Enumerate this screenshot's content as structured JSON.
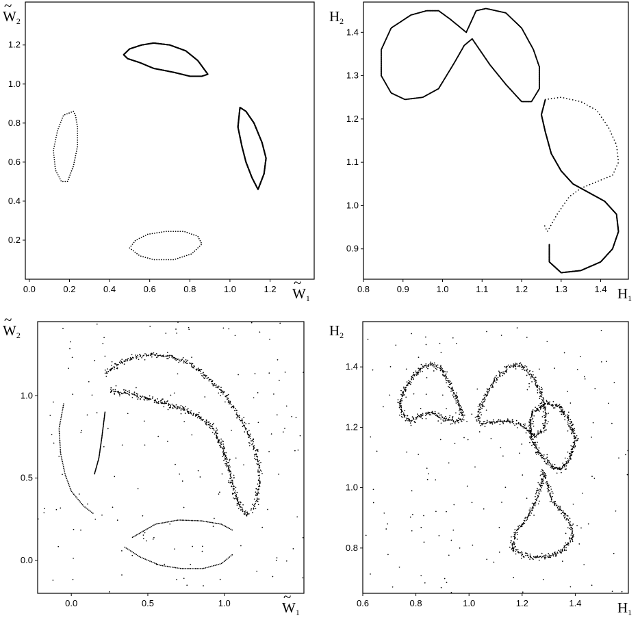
{
  "chart_data": [
    {
      "type": "scatter",
      "panel": "top-left",
      "xlabel": "W",
      "xlabel_sub": "1",
      "ylabel": "W",
      "ylabel_sub": "2",
      "label_accent": "~",
      "xlim": [
        -0.02,
        1.42
      ],
      "ylim": [
        0.0,
        1.42
      ],
      "xticks": [
        "0.0",
        "0.2",
        "0.4",
        "0.6",
        "0.8",
        "1.0",
        "1.2"
      ],
      "xtick_values": [
        0.0,
        0.2,
        0.4,
        0.6,
        0.8,
        1.0,
        1.2
      ],
      "yticks": [
        "0.2",
        "0.4",
        "0.6",
        "0.8",
        "1.0",
        "1.2"
      ],
      "ytick_values": [
        0.2,
        0.4,
        0.6,
        0.8,
        1.0,
        1.2
      ],
      "grid": false,
      "series": [
        {
          "values": [
            [
              0.47,
              1.15
            ],
            [
              0.5,
              1.18
            ],
            [
              0.56,
              1.2
            ],
            [
              0.62,
              1.21
            ],
            [
              0.7,
              1.2
            ],
            [
              0.78,
              1.17
            ],
            [
              0.84,
              1.12
            ],
            [
              0.89,
              1.05
            ],
            [
              0.86,
              1.04
            ],
            [
              0.8,
              1.04
            ],
            [
              0.72,
              1.06
            ],
            [
              0.62,
              1.08
            ],
            [
              0.55,
              1.11
            ],
            [
              0.49,
              1.13
            ],
            [
              0.47,
              1.15
            ]
          ],
          "style": "dense"
        },
        {
          "values": [
            [
              1.05,
              0.88
            ],
            [
              1.08,
              0.86
            ],
            [
              1.12,
              0.8
            ],
            [
              1.16,
              0.7
            ],
            [
              1.18,
              0.62
            ],
            [
              1.17,
              0.54
            ],
            [
              1.14,
              0.46
            ],
            [
              1.11,
              0.52
            ],
            [
              1.08,
              0.6
            ],
            [
              1.06,
              0.68
            ],
            [
              1.04,
              0.78
            ],
            [
              1.05,
              0.88
            ]
          ],
          "style": "dense"
        },
        {
          "values": [
            [
              0.22,
              0.86
            ],
            [
              0.17,
              0.84
            ],
            [
              0.14,
              0.76
            ],
            [
              0.12,
              0.66
            ],
            [
              0.13,
              0.56
            ],
            [
              0.16,
              0.5
            ],
            [
              0.19,
              0.5
            ],
            [
              0.22,
              0.58
            ],
            [
              0.24,
              0.68
            ],
            [
              0.24,
              0.78
            ],
            [
              0.23,
              0.84
            ],
            [
              0.22,
              0.86
            ]
          ],
          "style": "sparse"
        },
        {
          "values": [
            [
              0.59,
              0.23
            ],
            [
              0.68,
              0.245
            ],
            [
              0.77,
              0.245
            ],
            [
              0.84,
              0.22
            ],
            [
              0.86,
              0.18
            ],
            [
              0.81,
              0.13
            ],
            [
              0.72,
              0.1
            ],
            [
              0.62,
              0.1
            ],
            [
              0.55,
              0.12
            ],
            [
              0.5,
              0.16
            ],
            [
              0.53,
              0.2
            ],
            [
              0.59,
              0.23
            ]
          ],
          "style": "sparse"
        }
      ]
    },
    {
      "type": "scatter",
      "panel": "top-right",
      "xlabel": "H",
      "xlabel_sub": "1",
      "ylabel": "H",
      "ylabel_sub": "2",
      "xlim": [
        0.8,
        1.47
      ],
      "ylim": [
        0.83,
        1.47
      ],
      "xticks": [
        "0.8",
        "0.9",
        "1.0",
        "1.1",
        "1.2",
        "1.3",
        "1.4"
      ],
      "xtick_values": [
        0.8,
        0.9,
        1.0,
        1.1,
        1.2,
        1.3,
        1.4
      ],
      "yticks": [
        "0.9",
        "1.0",
        "1.1",
        "1.2",
        "1.3",
        "1.4"
      ],
      "ytick_values": [
        0.9,
        1.0,
        1.1,
        1.2,
        1.3,
        1.4
      ],
      "grid": false,
      "series": [
        {
          "values": [
            [
              1.06,
              1.4
            ],
            [
              1.02,
              1.43
            ],
            [
              0.99,
              1.45
            ],
            [
              0.96,
              1.45
            ],
            [
              0.92,
              1.44
            ],
            [
              0.87,
              1.41
            ],
            [
              0.845,
              1.36
            ],
            [
              0.845,
              1.3
            ],
            [
              0.87,
              1.26
            ],
            [
              0.905,
              1.245
            ],
            [
              0.95,
              1.25
            ],
            [
              0.99,
              1.27
            ],
            [
              1.03,
              1.33
            ],
            [
              1.055,
              1.37
            ],
            [
              1.075,
              1.385
            ],
            [
              1.12,
              1.325
            ],
            [
              1.16,
              1.28
            ],
            [
              1.2,
              1.24
            ],
            [
              1.225,
              1.24
            ],
            [
              1.245,
              1.27
            ],
            [
              1.245,
              1.32
            ],
            [
              1.23,
              1.36
            ],
            [
              1.2,
              1.41
            ],
            [
              1.16,
              1.445
            ],
            [
              1.11,
              1.455
            ],
            [
              1.085,
              1.45
            ],
            [
              1.07,
              1.42
            ],
            [
              1.06,
              1.4
            ]
          ],
          "style": "dense"
        },
        {
          "values": [
            [
              1.26,
              1.245
            ],
            [
              1.3,
              1.25
            ],
            [
              1.35,
              1.24
            ],
            [
              1.39,
              1.22
            ],
            [
              1.42,
              1.18
            ],
            [
              1.44,
              1.14
            ],
            [
              1.445,
              1.1
            ],
            [
              1.43,
              1.07
            ],
            [
              1.39,
              1.055
            ],
            [
              1.35,
              1.04
            ],
            [
              1.32,
              1.02
            ],
            [
              1.29,
              0.98
            ],
            [
              1.265,
              0.94
            ],
            [
              1.255,
              0.96
            ]
          ],
          "style": "sparse"
        },
        {
          "values": [
            [
              1.27,
              0.91
            ],
            [
              1.27,
              0.87
            ],
            [
              1.3,
              0.845
            ],
            [
              1.35,
              0.85
            ],
            [
              1.4,
              0.87
            ],
            [
              1.43,
              0.9
            ],
            [
              1.445,
              0.94
            ],
            [
              1.44,
              0.98
            ],
            [
              1.41,
              1.01
            ],
            [
              1.37,
              1.03
            ],
            [
              1.33,
              1.05
            ],
            [
              1.3,
              1.08
            ],
            [
              1.275,
              1.12
            ],
            [
              1.26,
              1.17
            ],
            [
              1.25,
              1.21
            ],
            [
              1.26,
              1.245
            ]
          ],
          "style": "dense"
        }
      ]
    },
    {
      "type": "scatter",
      "panel": "bottom-left",
      "xlabel": "W",
      "xlabel_sub": "1",
      "ylabel": "W",
      "ylabel_sub": "2",
      "label_accent": "~",
      "xlim": [
        -0.22,
        1.52
      ],
      "ylim": [
        -0.2,
        1.45
      ],
      "xticks": [
        "0.0",
        "0.5",
        "1.0"
      ],
      "xtick_values": [
        0.0,
        0.5,
        1.0
      ],
      "yticks": [
        "0.0",
        "0.5",
        "1.0"
      ],
      "ytick_values": [
        0.0,
        0.5,
        1.0
      ],
      "grid": false,
      "series": [
        {
          "values": [
            [
              0.22,
              1.13
            ],
            [
              0.3,
              1.19
            ],
            [
              0.4,
              1.23
            ],
            [
              0.52,
              1.25
            ],
            [
              0.64,
              1.24
            ],
            [
              0.76,
              1.2
            ],
            [
              0.88,
              1.12
            ],
            [
              0.98,
              1.03
            ],
            [
              1.06,
              0.93
            ],
            [
              1.13,
              0.82
            ],
            [
              1.19,
              0.7
            ],
            [
              1.225,
              0.58
            ],
            [
              1.23,
              0.46
            ],
            [
              1.21,
              0.36
            ],
            [
              1.18,
              0.3
            ]
          ],
          "style": "band"
        },
        {
          "values": [
            [
              0.25,
              1.03
            ],
            [
              0.4,
              1.01
            ],
            [
              0.55,
              0.97
            ],
            [
              0.7,
              0.93
            ],
            [
              0.82,
              0.88
            ],
            [
              0.93,
              0.8
            ],
            [
              0.98,
              0.7
            ],
            [
              1.02,
              0.6
            ],
            [
              1.05,
              0.48
            ],
            [
              1.08,
              0.38
            ],
            [
              1.12,
              0.3
            ],
            [
              1.16,
              0.27
            ]
          ],
          "style": "band"
        },
        {
          "values": [
            [
              0.4,
              0.14
            ],
            [
              0.55,
              0.22
            ],
            [
              0.7,
              0.245
            ],
            [
              0.85,
              0.24
            ],
            [
              0.98,
              0.22
            ],
            [
              1.06,
              0.18
            ]
          ],
          "style": "sparse"
        },
        {
          "values": [
            [
              0.35,
              0.08
            ],
            [
              0.45,
              0.02
            ],
            [
              0.58,
              -0.03
            ],
            [
              0.72,
              -0.05
            ],
            [
              0.86,
              -0.05
            ],
            [
              0.98,
              -0.02
            ],
            [
              1.06,
              0.04
            ]
          ],
          "style": "sparse"
        },
        {
          "values": [
            [
              -0.05,
              0.95
            ],
            [
              -0.08,
              0.8
            ],
            [
              -0.07,
              0.65
            ],
            [
              -0.04,
              0.52
            ],
            [
              0.0,
              0.42
            ],
            [
              0.08,
              0.33
            ],
            [
              0.15,
              0.28
            ]
          ],
          "style": "sparse"
        },
        {
          "values": [
            [
              0.22,
              0.9
            ],
            [
              0.2,
              0.75
            ],
            [
              0.18,
              0.62
            ],
            [
              0.15,
              0.52
            ]
          ],
          "style": "sparse"
        }
      ]
    },
    {
      "type": "scatter",
      "panel": "bottom-right",
      "xlabel": "H",
      "xlabel_sub": "1",
      "ylabel": "H",
      "ylabel_sub": "2",
      "xlim": [
        0.6,
        1.6
      ],
      "ylim": [
        0.65,
        1.55
      ],
      "xticks": [
        "0.6",
        "0.8",
        "1.0",
        "1.2",
        "1.4"
      ],
      "xtick_values": [
        0.6,
        0.8,
        1.0,
        1.2,
        1.4
      ],
      "yticks": [
        "0.8",
        "1.0",
        "1.2",
        "1.4"
      ],
      "ytick_values": [
        0.8,
        1.0,
        1.2,
        1.4
      ],
      "grid": false,
      "series": [
        {
          "values": [
            [
              0.74,
              1.28
            ],
            [
              0.76,
              1.33
            ],
            [
              0.79,
              1.37
            ],
            [
              0.83,
              1.4
            ],
            [
              0.86,
              1.41
            ],
            [
              0.9,
              1.39
            ],
            [
              0.93,
              1.34
            ],
            [
              0.96,
              1.28
            ],
            [
              0.98,
              1.23
            ],
            [
              0.95,
              1.22
            ],
            [
              0.9,
              1.23
            ],
            [
              0.86,
              1.25
            ],
            [
              0.82,
              1.24
            ],
            [
              0.78,
              1.22
            ],
            [
              0.75,
              1.24
            ],
            [
              0.74,
              1.28
            ]
          ],
          "style": "band"
        },
        {
          "values": [
            [
              1.03,
              1.23
            ],
            [
              1.06,
              1.3
            ],
            [
              1.1,
              1.36
            ],
            [
              1.15,
              1.4
            ],
            [
              1.19,
              1.41
            ],
            [
              1.23,
              1.38
            ],
            [
              1.26,
              1.34
            ],
            [
              1.28,
              1.29
            ],
            [
              1.29,
              1.24
            ],
            [
              1.28,
              1.19
            ],
            [
              1.25,
              1.17
            ],
            [
              1.21,
              1.2
            ],
            [
              1.16,
              1.22
            ],
            [
              1.1,
              1.22
            ],
            [
              1.05,
              1.21
            ],
            [
              1.03,
              1.23
            ]
          ],
          "style": "band"
        },
        {
          "values": [
            [
              1.24,
              1.25
            ],
            [
              1.29,
              1.28
            ],
            [
              1.34,
              1.27
            ],
            [
              1.38,
              1.22
            ],
            [
              1.4,
              1.16
            ],
            [
              1.38,
              1.1
            ],
            [
              1.35,
              1.06
            ],
            [
              1.31,
              1.07
            ],
            [
              1.28,
              1.1
            ],
            [
              1.26,
              1.12
            ],
            [
              1.24,
              1.16
            ],
            [
              1.23,
              1.21
            ],
            [
              1.24,
              1.25
            ]
          ],
          "style": "band"
        },
        {
          "values": [
            [
              1.28,
              1.05
            ],
            [
              1.3,
              1.0
            ],
            [
              1.31,
              0.96
            ],
            [
              1.34,
              0.93
            ],
            [
              1.37,
              0.9
            ],
            [
              1.39,
              0.86
            ],
            [
              1.38,
              0.82
            ],
            [
              1.35,
              0.79
            ],
            [
              1.3,
              0.77
            ],
            [
              1.25,
              0.77
            ],
            [
              1.2,
              0.78
            ],
            [
              1.16,
              0.8
            ],
            [
              1.18,
              0.86
            ],
            [
              1.22,
              0.9
            ],
            [
              1.25,
              0.95
            ],
            [
              1.27,
              1.0
            ],
            [
              1.28,
              1.05
            ]
          ],
          "style": "band"
        }
      ]
    }
  ]
}
